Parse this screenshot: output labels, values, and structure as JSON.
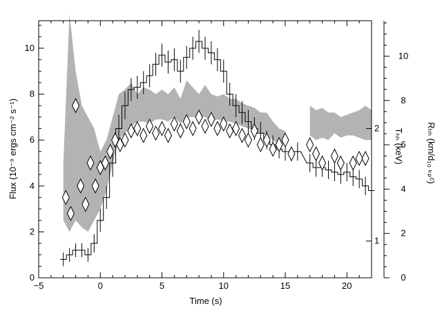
{
  "chart_data": {
    "type": "line",
    "title": "",
    "xlabel": "Time (s)",
    "ylabel_left": "Flux (10⁻⁹ ergs cm⁻² s⁻¹)",
    "ylabel_right_inner": "Tₕₕ (keV)",
    "ylabel_right_outer": "Rₕₕ (km/d₁₀ ₖₚᶜ)",
    "xlim": [
      -5,
      22
    ],
    "ylim_left": [
      0,
      11.2
    ],
    "ylim_right_outer": [
      0,
      11.6
    ],
    "temperature_axis_positions": [
      {
        "label": "1",
        "flux_level": 1.6
      },
      {
        "label": "2",
        "flux_level": 6.5
      }
    ],
    "x_ticks": [
      -5,
      0,
      5,
      10,
      15,
      20
    ],
    "y_left_ticks": [
      0,
      2,
      4,
      6,
      8,
      10
    ],
    "y_right_outer_ticks": [
      0,
      2,
      4,
      6,
      8,
      10
    ],
    "x_tick_labels": [
      "−5",
      "0",
      "5",
      "10",
      "15",
      "20"
    ],
    "y_left_tick_labels": [
      "0",
      "2",
      "4",
      "6",
      "8",
      "10"
    ],
    "y_right_outer_tick_labels": [
      "0",
      "2",
      "4",
      "6",
      "8",
      "10"
    ],
    "series": [
      {
        "style": "step",
        "x": [
          -3.0,
          -2.5,
          -2.0,
          -1.5,
          -1.0,
          -0.5,
          0.0,
          0.5,
          1.0,
          1.5,
          2.0,
          2.5,
          3.0,
          3.5,
          4.0,
          4.5,
          5.0,
          5.5,
          6.0,
          6.5,
          7.0,
          7.5,
          8.0,
          8.5,
          9.0,
          9.5,
          10.0,
          10.5,
          11.0,
          11.5,
          12.0,
          12.5,
          13.0,
          13.5,
          14.0,
          14.5,
          15.0,
          16.0,
          17.0,
          17.5,
          18.0,
          18.5,
          19.0,
          19.5,
          20.0,
          20.5,
          21.0,
          21.5,
          22.0
        ],
        "y": [
          0.8,
          1.0,
          1.2,
          1.2,
          1.0,
          1.5,
          2.5,
          3.5,
          5.0,
          6.5,
          7.5,
          8.2,
          8.3,
          8.5,
          8.8,
          9.3,
          9.7,
          9.4,
          9.5,
          9.0,
          9.6,
          10.0,
          10.3,
          10.0,
          9.8,
          9.5,
          9.0,
          8.0,
          7.5,
          7.2,
          6.8,
          6.5,
          6.3,
          6.0,
          5.8,
          5.6,
          5.5,
          5.5,
          5.0,
          4.8,
          4.8,
          4.7,
          4.6,
          4.5,
          4.6,
          4.4,
          4.3,
          4.0,
          3.8
        ],
        "err": [
          0.3,
          0.3,
          0.3,
          0.3,
          0.3,
          0.4,
          0.5,
          0.5,
          0.6,
          0.6,
          0.6,
          0.5,
          0.5,
          0.5,
          0.5,
          0.5,
          0.5,
          0.5,
          0.5,
          0.5,
          0.5,
          0.5,
          0.5,
          0.5,
          0.5,
          0.5,
          0.5,
          0.5,
          0.5,
          0.5,
          0.5,
          0.5,
          0.5,
          0.4,
          0.4,
          0.4,
          0.4,
          0.4,
          0.4,
          0.4,
          0.4,
          0.4,
          0.4,
          0.4,
          0.4,
          0.4,
          0.4,
          0.4,
          0.4
        ]
      },
      {
        "style": "diamond",
        "x": [
          -2.8,
          -2.4,
          -2.0,
          -1.6,
          -1.2,
          -0.8,
          -0.4,
          0.0,
          0.4,
          0.8,
          1.2,
          1.6,
          2.0,
          2.5,
          3.0,
          3.5,
          4.0,
          4.5,
          5.0,
          5.5,
          6.0,
          6.5,
          7.0,
          7.5,
          8.0,
          8.5,
          9.0,
          9.5,
          10.0,
          10.5,
          11.0,
          11.5,
          12.0,
          12.5,
          13.0,
          13.5,
          14.0,
          14.5,
          15.0,
          15.5,
          17.0,
          17.5,
          18.0,
          19.0,
          19.5,
          20.5,
          21.0,
          21.5
        ],
        "y": [
          3.5,
          2.8,
          7.5,
          4.0,
          3.2,
          5.0,
          4.0,
          4.8,
          5.0,
          5.5,
          6.0,
          5.8,
          6.0,
          6.4,
          6.5,
          6.2,
          6.6,
          6.3,
          6.5,
          6.2,
          6.7,
          6.4,
          6.8,
          6.5,
          7.0,
          6.6,
          6.9,
          6.5,
          6.7,
          6.4,
          6.5,
          6.2,
          6.0,
          6.4,
          5.8,
          6.0,
          5.6,
          5.8,
          6.0,
          5.4,
          5.8,
          5.4,
          5.0,
          5.3,
          5.0,
          5.0,
          5.2,
          5.2
        ]
      },
      {
        "style": "band",
        "x": [
          -3.0,
          -2.5,
          -2.0,
          -1.5,
          -1.0,
          -0.5,
          0.0,
          0.5,
          1.0,
          1.5,
          2.0,
          2.5,
          3.0,
          3.5,
          4.0,
          4.5,
          5.0,
          5.5,
          6.0,
          6.5,
          7.0,
          7.5,
          8.0,
          8.5,
          9.0,
          9.5,
          10.0,
          10.5,
          11.0,
          11.5,
          12.0,
          12.5,
          13.0,
          13.5,
          14.0,
          14.5,
          15.0
        ],
        "upper": [
          5.0,
          11.5,
          9.0,
          7.5,
          7.0,
          6.5,
          5.5,
          6.0,
          7.0,
          8.0,
          8.2,
          8.5,
          8.0,
          8.3,
          8.2,
          8.0,
          8.2,
          8.0,
          8.3,
          7.8,
          8.6,
          8.3,
          8.0,
          8.4,
          8.0,
          7.9,
          8.0,
          7.8,
          7.8,
          7.6,
          7.5,
          7.4,
          7.2,
          7.2,
          6.8,
          6.5,
          6.4
        ],
        "lower": [
          2.5,
          2.0,
          2.5,
          2.2,
          2.0,
          2.5,
          3.0,
          3.8,
          5.0,
          6.0,
          6.3,
          6.6,
          6.8,
          6.8,
          6.7,
          6.9,
          6.9,
          6.8,
          7.0,
          6.7,
          7.0,
          7.0,
          7.0,
          7.0,
          6.8,
          6.9,
          6.8,
          6.8,
          6.7,
          6.6,
          6.5,
          6.4,
          6.3,
          6.2,
          6.0,
          5.8,
          5.8
        ]
      },
      {
        "style": "band",
        "x": [
          17.0,
          17.5,
          18.0,
          18.5,
          19.0,
          19.5,
          20.0,
          20.5,
          21.0,
          21.5,
          22.0
        ],
        "upper": [
          7.5,
          7.3,
          7.4,
          7.2,
          7.2,
          7.0,
          7.1,
          7.2,
          7.3,
          7.5,
          7.3
        ],
        "lower": [
          6.2,
          6.0,
          6.1,
          6.0,
          6.3,
          6.1,
          6.2,
          6.2,
          6.1,
          6.0,
          6.0
        ]
      }
    ]
  }
}
